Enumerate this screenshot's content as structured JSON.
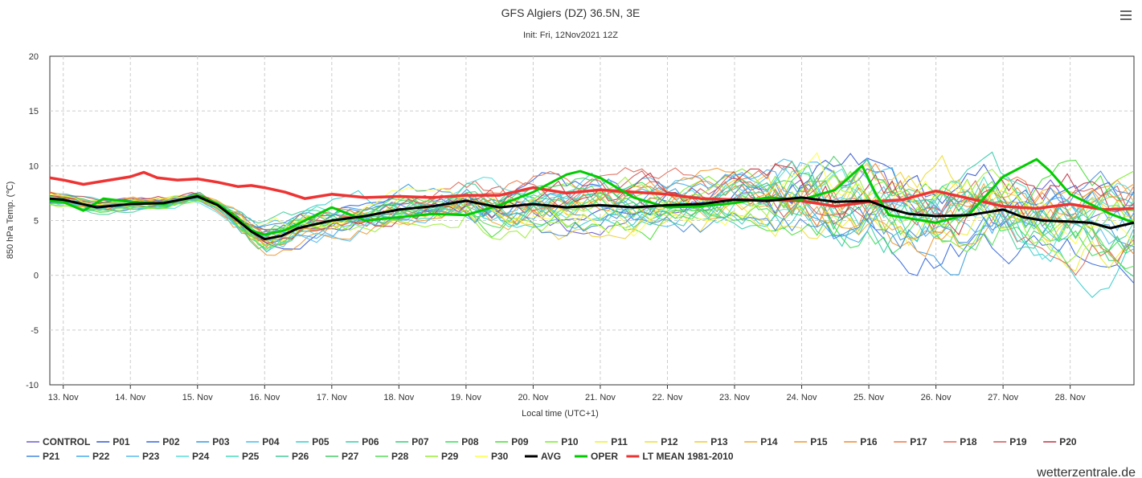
{
  "header": {
    "title": "GFS Algiers (DZ) 36.5N, 3E",
    "subtitle": "Init: Fri, 12Nov2021 12Z",
    "menu_icon": "hamburger-menu-icon"
  },
  "credit": "wetterzentrale.de",
  "chart_data": {
    "type": "line",
    "title": "GFS Algiers (DZ) 36.5N, 3E",
    "subtitle": "Init: Fri, 12Nov2021 12Z",
    "xlabel": "Local time (UTC+1)",
    "ylabel": "850 hPa Temp. (℃)",
    "ylim": [
      -10,
      20
    ],
    "yticks": [
      -10,
      -5,
      0,
      5,
      10,
      15,
      20
    ],
    "x_categories": [
      "13. Nov",
      "14. Nov",
      "15. Nov",
      "16. Nov",
      "17. Nov",
      "18. Nov",
      "19. Nov",
      "20. Nov",
      "21. Nov",
      "22. Nov",
      "23. Nov",
      "24. Nov",
      "25. Nov",
      "26. Nov",
      "27. Nov",
      "28. Nov"
    ],
    "x_start_day": 12.8,
    "x_end_day": 28.95,
    "grid": true,
    "legend_position": "bottom",
    "series": [
      {
        "name": "AVG",
        "color": "#000000",
        "width": 3,
        "x": [
          12.8,
          13,
          13.5,
          14,
          14.5,
          15,
          15.3,
          15.6,
          15.8,
          16,
          16.25,
          16.5,
          17,
          17.5,
          18,
          18.5,
          19,
          19.5,
          20,
          20.5,
          21,
          21.5,
          22,
          22.5,
          23,
          23.5,
          24,
          24.5,
          25,
          25.3,
          25.6,
          26,
          26.5,
          27,
          27.3,
          27.6,
          28,
          28.3,
          28.6,
          28.95
        ],
        "y": [
          7.0,
          6.9,
          6.2,
          6.5,
          6.6,
          7.2,
          6.4,
          5.0,
          4.0,
          3.3,
          3.6,
          4.3,
          5.0,
          5.4,
          6.0,
          6.3,
          6.8,
          6.2,
          6.5,
          6.2,
          6.4,
          6.2,
          6.4,
          6.5,
          6.9,
          6.8,
          7.1,
          6.7,
          6.8,
          6.1,
          5.6,
          5.4,
          5.5,
          6.0,
          5.3,
          5.0,
          4.9,
          4.8,
          4.3,
          4.8
        ]
      },
      {
        "name": "OPER",
        "color": "#00cc00",
        "width": 3,
        "x": [
          12.8,
          13,
          13.3,
          13.6,
          14,
          14.5,
          15,
          15.3,
          15.6,
          15.8,
          16,
          16.3,
          16.6,
          17,
          17.5,
          18,
          18.5,
          19,
          19.5,
          20,
          20.5,
          20.7,
          21,
          21.5,
          22,
          22.5,
          23,
          23.5,
          24,
          24.5,
          24.9,
          25.1,
          25.3,
          25.6,
          26,
          26.5,
          27,
          27.5,
          27.7,
          28,
          28.3,
          28.6,
          28.95
        ],
        "y": [
          6.8,
          6.7,
          5.9,
          7.0,
          6.7,
          6.5,
          7.3,
          6.5,
          5.2,
          4.1,
          3.7,
          4.1,
          5.0,
          6.2,
          5.0,
          5.3,
          5.6,
          5.5,
          6.4,
          7.6,
          9.2,
          9.5,
          8.9,
          7.1,
          6.2,
          6.3,
          6.6,
          7.1,
          6.9,
          7.8,
          10.0,
          7.5,
          5.5,
          5.2,
          4.8,
          5.6,
          9.0,
          10.6,
          9.5,
          7.4,
          6.5,
          5.6,
          4.8
        ]
      },
      {
        "name": "LT MEAN 1981-2010",
        "color": "#ee3333",
        "width": 3.5,
        "x": [
          12.8,
          13,
          13.3,
          13.6,
          14,
          14.2,
          14.4,
          14.7,
          15,
          15.3,
          15.6,
          15.8,
          16,
          16.3,
          16.6,
          17,
          17.5,
          18,
          18.5,
          19,
          19.5,
          20,
          20.5,
          21,
          21.5,
          22,
          22.5,
          23,
          23.5,
          24,
          24.5,
          25,
          25.5,
          26,
          26.5,
          27,
          27.5,
          28,
          28.5,
          28.95
        ],
        "y": [
          8.9,
          8.7,
          8.3,
          8.6,
          9.0,
          9.4,
          8.9,
          8.7,
          8.8,
          8.5,
          8.1,
          8.2,
          8.0,
          7.6,
          7.0,
          7.4,
          7.1,
          7.2,
          7.1,
          7.3,
          7.3,
          8.0,
          7.5,
          7.8,
          7.6,
          7.4,
          7.0,
          6.9,
          6.9,
          6.8,
          6.3,
          6.7,
          6.9,
          7.7,
          7.0,
          6.3,
          6.1,
          6.5,
          6.0,
          6.1
        ]
      }
    ],
    "members": [
      {
        "name": "CONTROL",
        "color": "#6a5acd"
      },
      {
        "name": "P01",
        "color": "#3355cc"
      },
      {
        "name": "P02",
        "color": "#3366dd"
      },
      {
        "name": "P03",
        "color": "#3399dd"
      },
      {
        "name": "P04",
        "color": "#44bbee"
      },
      {
        "name": "P05",
        "color": "#33cccc"
      },
      {
        "name": "P06",
        "color": "#33ccaa"
      },
      {
        "name": "P07",
        "color": "#33cc77"
      },
      {
        "name": "P08",
        "color": "#33dd55"
      },
      {
        "name": "P09",
        "color": "#44dd33"
      },
      {
        "name": "P10",
        "color": "#77ee22"
      },
      {
        "name": "P11",
        "color": "#eeee33"
      },
      {
        "name": "P12",
        "color": "#eedd33"
      },
      {
        "name": "P13",
        "color": "#eecc33"
      },
      {
        "name": "P14",
        "color": "#eeaa33"
      },
      {
        "name": "P15",
        "color": "#ee9933"
      },
      {
        "name": "P16",
        "color": "#ee8833"
      },
      {
        "name": "P17",
        "color": "#ee7744"
      },
      {
        "name": "P18",
        "color": "#dd6655"
      },
      {
        "name": "P19",
        "color": "#cc5555"
      },
      {
        "name": "P20",
        "color": "#bb3344"
      },
      {
        "name": "P21",
        "color": "#4488dd"
      },
      {
        "name": "P22",
        "color": "#44aaee"
      },
      {
        "name": "P23",
        "color": "#55bbee"
      },
      {
        "name": "P24",
        "color": "#55dddd"
      },
      {
        "name": "P25",
        "color": "#44ddbb"
      },
      {
        "name": "P26",
        "color": "#44cc99"
      },
      {
        "name": "P27",
        "color": "#44cc66"
      },
      {
        "name": "P28",
        "color": "#55dd55"
      },
      {
        "name": "P29",
        "color": "#99ee33"
      },
      {
        "name": "P30",
        "color": "#ffff44"
      }
    ]
  }
}
